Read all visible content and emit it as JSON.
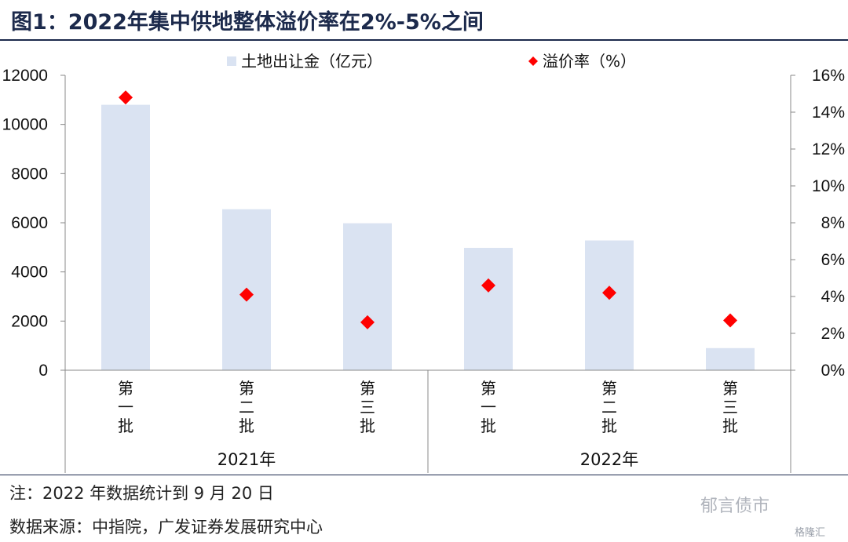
{
  "header": {
    "title": "图1：2022年集中供地整体溢价率在2%-5%之间"
  },
  "chart_data": {
    "type": "bar",
    "categories": [
      "第一批",
      "第二批",
      "第三批",
      "第一批",
      "第二批",
      "第三批"
    ],
    "groups": [
      {
        "label": "2021年",
        "count": 3
      },
      {
        "label": "2022年",
        "count": 3
      }
    ],
    "series": [
      {
        "name": "土地出让金（亿元）",
        "type": "bar",
        "axis": "left",
        "color": "#dae3f2",
        "values": [
          10800,
          6550,
          5980,
          4980,
          5280,
          900
        ]
      },
      {
        "name": "溢价率（%）",
        "type": "scatter",
        "axis": "right",
        "color": "#ff0000",
        "values": [
          14.8,
          4.1,
          2.6,
          4.6,
          4.2,
          2.7
        ]
      }
    ],
    "y_left": {
      "ylim": [
        0,
        12000
      ],
      "ticks": [
        "0",
        "2000",
        "4000",
        "6000",
        "8000",
        "10000",
        "12000"
      ]
    },
    "y_right": {
      "ylim": [
        0,
        16
      ],
      "ticks": [
        "0%",
        "2%",
        "4%",
        "6%",
        "8%",
        "10%",
        "12%",
        "14%",
        "16%"
      ]
    },
    "legend": "top",
    "grid": false
  },
  "footer": {
    "note": "注：2022 年数据统计到 9 月 20 日",
    "source": "数据来源：中指院，广发证券发展研究中心"
  },
  "watermark": {
    "text": "郁言债市",
    "sub": "格隆汇"
  }
}
